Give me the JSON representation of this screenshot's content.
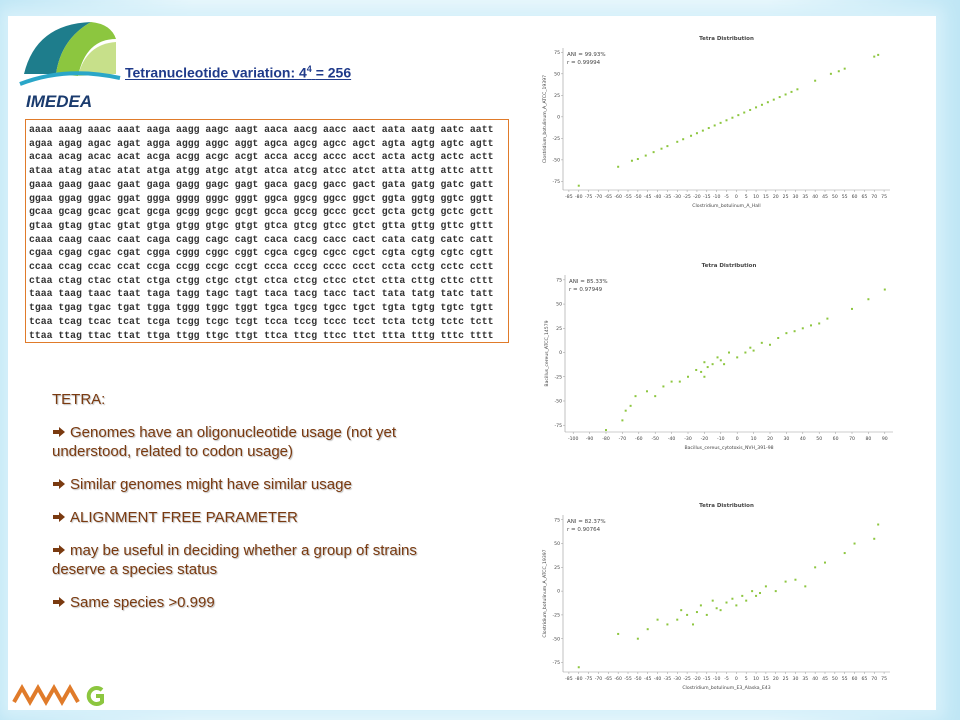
{
  "logo": {
    "text": "IMEDEA"
  },
  "title": {
    "base": "Tetranucleotide variation: 4",
    "exponent": "4",
    "result": "= 256"
  },
  "table": {
    "rows": [
      "aaaa aaag aaac aaat aaga aagg aagc aagt aaca aacg aacc aact aata aatg aatc aatt",
      "agaa agag agac agat agga aggg aggc aggt agca agcg agcc agct agta agtg agtc agtt",
      "acaa acag acac acat acga acgg acgc acgt acca accg accc acct acta actg actc actt",
      "ataa atag atac atat atga atgg atgc atgt atca atcg atcc atct atta attg attc attt",
      "gaaa gaag gaac gaat gaga gagg gagc gagt gaca gacg gacc gact gata gatg gatc gatt",
      "ggaa ggag ggac ggat ggga gggg gggc gggt ggca ggcg ggcc ggct ggta ggtg ggtc ggtt",
      "gcaa gcag gcac gcat gcga gcgg gcgc gcgt gcca gccg gccc gcct gcta gctg gctc gctt",
      "gtaa gtag gtac gtat gtga gtgg gtgc gtgt gtca gtcg gtcc gtct gtta gttg gttc gttt",
      "caaa caag caac caat caga cagg cagc cagt caca cacg cacc cact cata catg catc catt",
      "cgaa cgag cgac cgat cgga cggg cggc cggt cgca cgcg cgcc cgct cgta cgtg cgtc cgtt",
      "ccaa ccag ccac ccat ccga ccgg ccgc ccgt ccca cccg cccc ccct ccta cctg cctc cctt",
      "ctaa ctag ctac ctat ctga ctgg ctgc ctgt ctca ctcg ctcc ctct ctta cttg cttc cttt",
      "taaa taag taac taat taga tagg tagc tagt taca tacg tacc tact tata tatg tatc tatt",
      "tgaa tgag tgac tgat tgga tggg tggc tggt tgca tgcg tgcc tgct tgta tgtg tgtc tgtt",
      "tcaa tcag tcac tcat tcga tcgg tcgc tcgt tcca tccg tccc tcct tcta tctg tctc tctt",
      "ttaa ttag ttac ttat ttga ttgg ttgc ttgt ttca ttcg ttcc ttct ttta tttg tttc tttt"
    ]
  },
  "bullets": {
    "heading": "TETRA:",
    "items": [
      "Genomes have an oligonucleotide usage (not yet understood, related to codon usage)",
      "Similar genomes might have similar usage",
      "ALIGNMENT FREE PARAMETER",
      "may be useful in deciding whether a group of strains deserve a species status",
      "Same species >0.999"
    ]
  },
  "plots": [
    {
      "type": "scatter",
      "title": "Tetra Distribution",
      "annotation": [
        "ANI = 99.93%",
        "r = 0.99994"
      ],
      "xlabel": "Clostridium_botulinum_A_Hall",
      "ylabel": "Clostridium_botulinum_A_ATCC_19397",
      "color": "#8dc63f",
      "xlim": [
        -88,
        78
      ],
      "ylim": [
        -85,
        80
      ],
      "xticks": [
        -85,
        -80,
        -75,
        -70,
        -65,
        -60,
        -55,
        -50,
        -45,
        -40,
        -35,
        -30,
        -25,
        -20,
        -15,
        -10,
        -5,
        0,
        5,
        10,
        15,
        20,
        25,
        30,
        35,
        40,
        45,
        50,
        55,
        60,
        65,
        70,
        75
      ],
      "yticks": [
        -75,
        -50,
        -25,
        0,
        25,
        50,
        75
      ],
      "x": [
        -80,
        -60,
        -53,
        -50,
        -46,
        -42,
        -38,
        -35,
        -30,
        -27,
        -23,
        -20,
        -17,
        -14,
        -11,
        -8,
        -5,
        -2,
        1,
        4,
        7,
        10,
        13,
        16,
        19,
        22,
        25,
        28,
        31,
        40,
        48,
        52,
        55,
        70,
        72
      ],
      "y": [
        -80,
        -58,
        -51,
        -49,
        -45,
        -41,
        -37,
        -34,
        -29,
        -26,
        -22,
        -19,
        -16,
        -13,
        -10,
        -7,
        -4,
        -1,
        2,
        5,
        8,
        11,
        14,
        17,
        20,
        23,
        26,
        29,
        32,
        42,
        50,
        53,
        56,
        70,
        72
      ]
    },
    {
      "type": "scatter",
      "title": "Tetra Distribution",
      "annotation": [
        "ANI = 85.33%",
        "r = 0.97949"
      ],
      "xlabel": "Bacillus_cereus_cytotoxis_NVH_391-98",
      "ylabel": "Bacillus_cereus_ATCC_14579",
      "color": "#8dc63f",
      "xlim": [
        -105,
        95
      ],
      "ylim": [
        -82,
        80
      ],
      "xticks": [
        -100,
        -90,
        -80,
        -70,
        -60,
        -50,
        -40,
        -30,
        -20,
        -10,
        0,
        10,
        20,
        30,
        40,
        50,
        60,
        70,
        80,
        90
      ],
      "yticks": [
        -75,
        -50,
        -25,
        0,
        25,
        50,
        75
      ],
      "x": [
        -80,
        -70,
        -68,
        -65,
        -62,
        -55,
        -50,
        -45,
        -40,
        -35,
        -30,
        -25,
        -22,
        -20,
        -18,
        -15,
        -12,
        -10,
        -5,
        0,
        5,
        8,
        10,
        15,
        20,
        25,
        30,
        35,
        40,
        45,
        50,
        55,
        70,
        80,
        90,
        -20,
        -8
      ],
      "y": [
        -80,
        -70,
        -60,
        -55,
        -45,
        -40,
        -45,
        -35,
        -30,
        -30,
        -25,
        -18,
        -20,
        -10,
        -15,
        -12,
        -5,
        -8,
        0,
        -5,
        0,
        5,
        2,
        10,
        8,
        15,
        20,
        22,
        25,
        28,
        30,
        35,
        45,
        55,
        65,
        -25,
        -12
      ]
    },
    {
      "type": "scatter",
      "title": "Tetra Distribution",
      "annotation": [
        "ANI = 82.37%",
        "r = 0.90764"
      ],
      "xlabel": "Clostridium_botulinum_E3_Alaska_E43",
      "ylabel": "Clostridium_botulinum_A_ATCC_19397",
      "color": "#8dc63f",
      "xlim": [
        -88,
        78
      ],
      "ylim": [
        -85,
        80
      ],
      "xticks": [
        -85,
        -80,
        -75,
        -70,
        -65,
        -60,
        -55,
        -50,
        -45,
        -40,
        -35,
        -30,
        -25,
        -20,
        -15,
        -10,
        -5,
        0,
        5,
        10,
        15,
        20,
        25,
        30,
        35,
        40,
        45,
        50,
        55,
        60,
        65,
        70,
        75
      ],
      "yticks": [
        -75,
        -50,
        -25,
        0,
        25,
        50,
        75
      ],
      "x": [
        -80,
        -60,
        -50,
        -45,
        -40,
        -35,
        -30,
        -28,
        -25,
        -20,
        -18,
        -15,
        -12,
        -10,
        -5,
        -2,
        0,
        3,
        5,
        8,
        10,
        15,
        20,
        25,
        30,
        35,
        40,
        45,
        55,
        60,
        70,
        72,
        -22,
        -8,
        12
      ],
      "y": [
        -80,
        -45,
        -50,
        -40,
        -30,
        -35,
        -30,
        -20,
        -25,
        -22,
        -15,
        -25,
        -10,
        -18,
        -12,
        -8,
        -15,
        -5,
        -10,
        0,
        -5,
        5,
        0,
        10,
        12,
        5,
        25,
        30,
        40,
        50,
        55,
        70,
        -35,
        -20,
        -2
      ]
    }
  ]
}
